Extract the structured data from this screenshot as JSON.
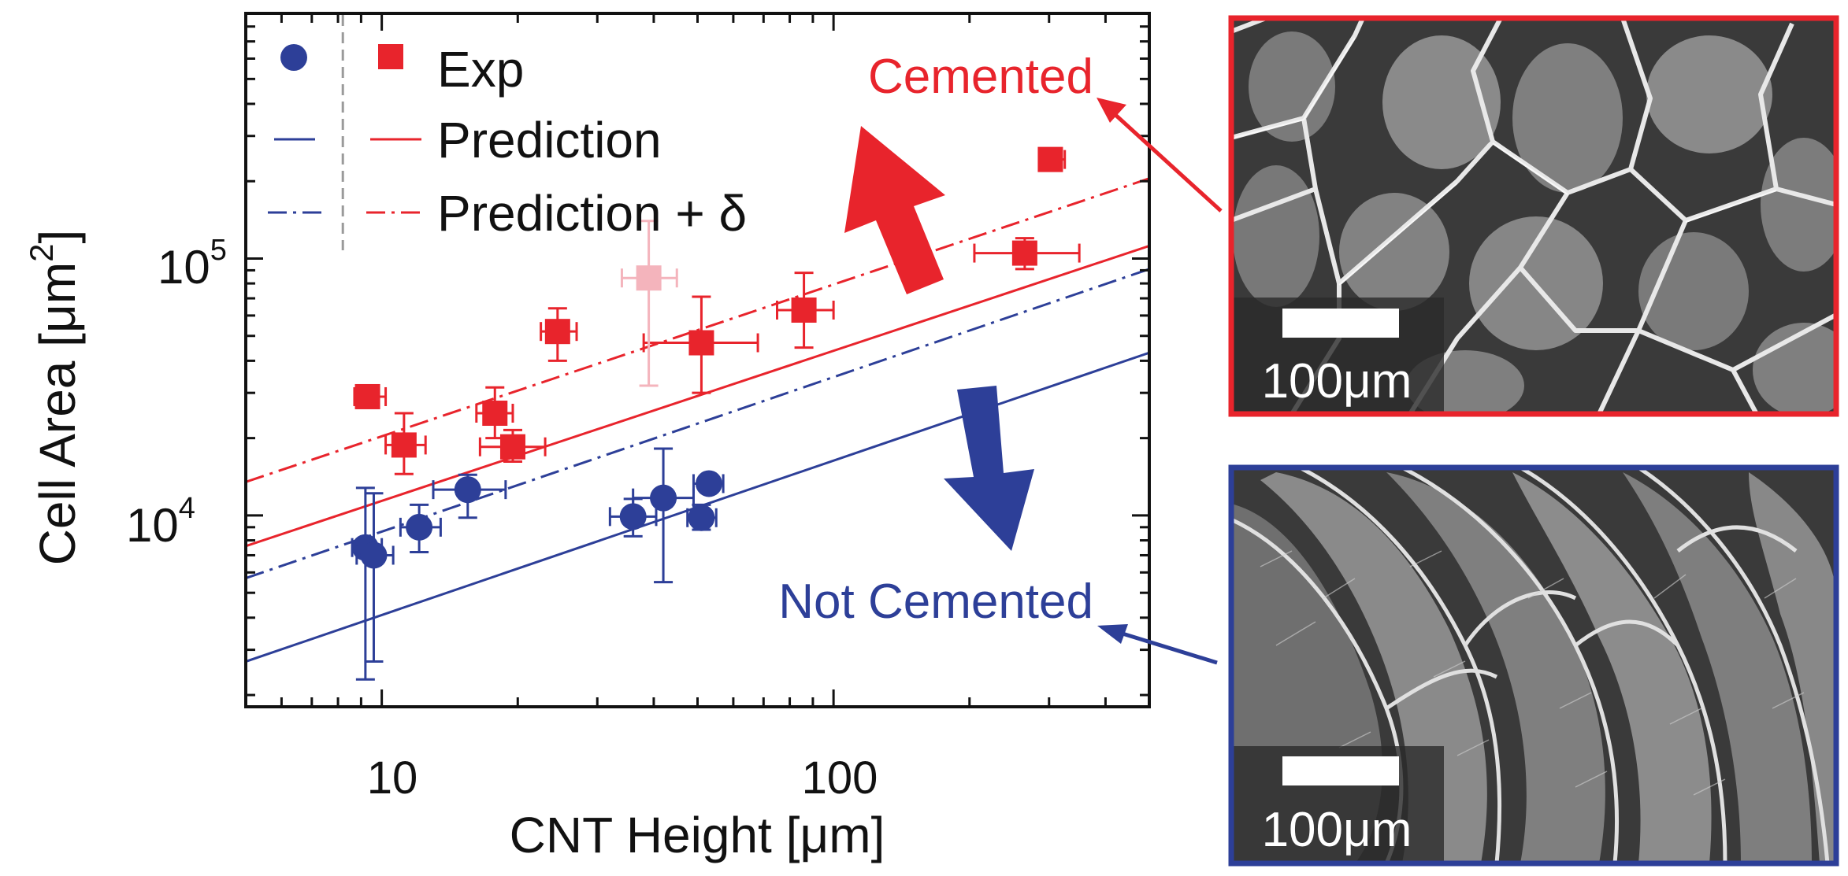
{
  "colors": {
    "cemented": "#e8242c",
    "not_cemented": "#2d3f98",
    "outlier": "#f4b4bc",
    "black": "#111111",
    "guide": "#9a9a9a"
  },
  "chart_data": {
    "type": "scatter",
    "title": "",
    "xlabel": "CNT Height [μm]",
    "ylabel_main": "Cell Area [μm",
    "ylabel_sup": "2",
    "ylabel_close": "]",
    "xscale": "log",
    "yscale": "log",
    "xlim": [
      5,
      500
    ],
    "ylim": [
      1800,
      900000
    ],
    "grid": false,
    "legend_placement": "top-left",
    "x_tick_labels": [
      {
        "value": 10,
        "label": "10"
      },
      {
        "value": 100,
        "label": "100"
      }
    ],
    "y_tick_labels": [
      {
        "value": 10000,
        "base": "10",
        "exp": "4"
      },
      {
        "value": 100000,
        "base": "10",
        "exp": "5"
      }
    ],
    "legend": {
      "exp_label": "Exp",
      "prediction_label": "Prediction",
      "prediction_delta_label": "Prediction + δ"
    },
    "guide_line_x": 8.2,
    "series": [
      {
        "marker": "square",
        "color": "#e8242c",
        "points": [
          {
            "x": 9.3,
            "y": 29000,
            "xlo": 8.7,
            "xhi": 10.2,
            "ylo": 26500,
            "yhi": 32000
          },
          {
            "x": 11.2,
            "y": 18800,
            "xlo": 10.2,
            "xhi": 12.5,
            "ylo": 14500,
            "yhi": 25000
          },
          {
            "x": 17.8,
            "y": 25000,
            "xlo": 16.2,
            "xhi": 19.5,
            "ylo": 20000,
            "yhi": 31500
          },
          {
            "x": 19.5,
            "y": 18500,
            "xlo": 16.5,
            "xhi": 23.0,
            "ylo": 16200,
            "yhi": 21500
          },
          {
            "x": 24.5,
            "y": 52000,
            "xlo": 22.5,
            "xhi": 27.0,
            "ylo": 40000,
            "yhi": 64000
          },
          {
            "x": 51,
            "y": 47000,
            "xlo": 38,
            "xhi": 68,
            "ylo": 30000,
            "yhi": 71000
          },
          {
            "x": 86,
            "y": 63000,
            "xlo": 75,
            "xhi": 100,
            "ylo": 45000,
            "yhi": 88000
          },
          {
            "x": 265,
            "y": 105000,
            "xlo": 205,
            "xhi": 350,
            "ylo": 91000,
            "yhi": 120000
          },
          {
            "x": 302,
            "y": 243000,
            "xlo": 285,
            "xhi": 325,
            "ylo": 222000,
            "yhi": 265000
          }
        ]
      },
      {
        "marker": "square",
        "color": "#f4b4bc",
        "points": [
          {
            "x": 39,
            "y": 84000,
            "xlo": 34,
            "xhi": 45,
            "ylo": 32000,
            "yhi": 140000
          }
        ]
      },
      {
        "marker": "circle",
        "color": "#2d3f98",
        "points": [
          {
            "x": 9.2,
            "y": 7500,
            "xlo": 8.6,
            "xhi": 10.0,
            "ylo": 2300,
            "yhi": 12800
          },
          {
            "x": 9.6,
            "y": 7000,
            "xlo": 8.8,
            "xhi": 10.6,
            "ylo": 2700,
            "yhi": 12200
          },
          {
            "x": 12.1,
            "y": 9000,
            "xlo": 11.0,
            "xhi": 13.5,
            "ylo": 7200,
            "yhi": 11000
          },
          {
            "x": 15.5,
            "y": 12600,
            "xlo": 13.0,
            "xhi": 18.8,
            "ylo": 9800,
            "yhi": 14400
          },
          {
            "x": 36,
            "y": 9900,
            "xlo": 32.0,
            "xhi": 40.5,
            "ylo": 8300,
            "yhi": 11600
          },
          {
            "x": 42,
            "y": 11700,
            "xlo": 36.0,
            "xhi": 49.0,
            "ylo": 5500,
            "yhi": 18200
          },
          {
            "x": 51,
            "y": 9800,
            "xlo": 47.5,
            "xhi": 55.0,
            "ylo": 8800,
            "yhi": 11000
          },
          {
            "x": 53,
            "y": 13300,
            "xlo": 49.0,
            "xhi": 57.0,
            "ylo": 12400,
            "yhi": 14300
          }
        ]
      }
    ],
    "lines": [
      {
        "style": "solid",
        "color": "#e8242c",
        "x": [
          5,
          500
        ],
        "y": [
          7600,
          112000
        ]
      },
      {
        "style": "dashdot",
        "color": "#e8242c",
        "x": [
          5,
          500
        ],
        "y": [
          13500,
          205000
        ]
      },
      {
        "style": "solid",
        "color": "#2d3f98",
        "x": [
          5,
          500
        ],
        "y": [
          2700,
          43000
        ]
      },
      {
        "style": "dashdot",
        "color": "#2d3f98",
        "x": [
          5,
          500
        ],
        "y": [
          5700,
          91000
        ]
      }
    ],
    "annotations": {
      "cemented": "Cemented",
      "not_cemented": "Not Cemented"
    }
  },
  "images": [
    {
      "scale_label": "100μm",
      "border_color": "#e8242c",
      "name": "sem-image-cemented"
    },
    {
      "scale_label": "100μm",
      "border_color": "#2d3f98",
      "name": "sem-image-not-cemented"
    }
  ]
}
